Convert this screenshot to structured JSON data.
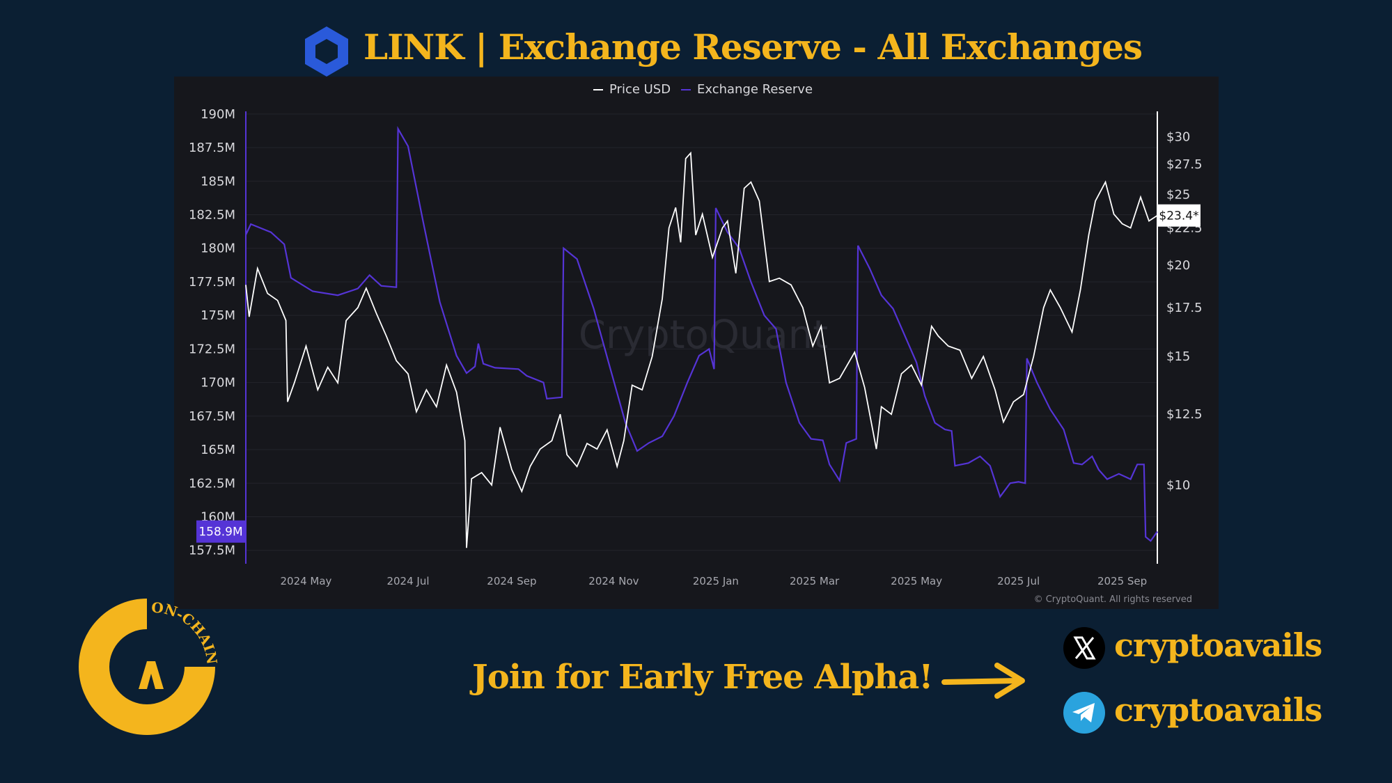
{
  "header": {
    "title": "LINK | Exchange Reserve - All Exchanges",
    "logo_icon": "chainlink-hexagon-icon",
    "logo_color": "#2a5ada"
  },
  "chart_data": {
    "type": "line",
    "legend": {
      "placement": "top-center",
      "entries": [
        "Price USD",
        "Exchange Reserve"
      ]
    },
    "x_ticks": [
      "2024 May",
      "2024 Jul",
      "2024 Sep",
      "2024 Nov",
      "2025 Jan",
      "2025 Mar",
      "2025 May",
      "2025 Jul",
      "2025 Sep"
    ],
    "x_range": [
      "2024-03-26",
      "2025-09-22"
    ],
    "y_left": {
      "ticks": [
        "190M",
        "187.5M",
        "185M",
        "182.5M",
        "180M",
        "177.5M",
        "175M",
        "172.5M",
        "170M",
        "167.5M",
        "165M",
        "162.5M",
        "160M",
        "157.5M"
      ],
      "range": [
        156.5,
        190.2
      ],
      "unit": "M"
    },
    "y_right": {
      "ticks": [
        "$30",
        "$27.5",
        "$25",
        "$22.5",
        "$20",
        "$17.5",
        "$15",
        "$12.5",
        "$10"
      ],
      "scale": "log",
      "range": [
        7.8,
        32.5
      ]
    },
    "current_badges": {
      "reserve": "158.9M",
      "price": "$23.4*"
    },
    "series": [
      {
        "name": "Exchange Reserve",
        "axis": "left",
        "color": "#5534d6",
        "points": [
          [
            "2024-03-26",
            181.0
          ],
          [
            "2024-03-29",
            181.8
          ],
          [
            "2024-04-10",
            181.2
          ],
          [
            "2024-04-18",
            180.3
          ],
          [
            "2024-04-22",
            177.8
          ],
          [
            "2024-05-05",
            176.8
          ],
          [
            "2024-05-20",
            176.5
          ],
          [
            "2024-06-01",
            177.0
          ],
          [
            "2024-06-08",
            178.0
          ],
          [
            "2024-06-15",
            177.2
          ],
          [
            "2024-06-24",
            177.1
          ],
          [
            "2024-06-25",
            188.9
          ],
          [
            "2024-07-01",
            187.6
          ],
          [
            "2024-07-10",
            182.0
          ],
          [
            "2024-07-20",
            176.0
          ],
          [
            "2024-07-30",
            172.0
          ],
          [
            "2024-08-05",
            170.7
          ],
          [
            "2024-08-10",
            171.2
          ],
          [
            "2024-08-12",
            172.9
          ],
          [
            "2024-08-15",
            171.4
          ],
          [
            "2024-08-22",
            171.1
          ],
          [
            "2024-09-05",
            171.0
          ],
          [
            "2024-09-10",
            170.5
          ],
          [
            "2024-09-20",
            170.0
          ],
          [
            "2024-09-22",
            168.8
          ],
          [
            "2024-10-01",
            168.9
          ],
          [
            "2024-10-02",
            180.0
          ],
          [
            "2024-10-10",
            179.2
          ],
          [
            "2024-10-20",
            175.5
          ],
          [
            "2024-10-30",
            171.0
          ],
          [
            "2024-11-08",
            167.0
          ],
          [
            "2024-11-15",
            164.9
          ],
          [
            "2024-11-22",
            165.5
          ],
          [
            "2024-11-30",
            166.0
          ],
          [
            "2024-12-07",
            167.5
          ],
          [
            "2024-12-15",
            170.0
          ],
          [
            "2024-12-22",
            172.0
          ],
          [
            "2024-12-28",
            172.5
          ],
          [
            "2024-12-31",
            171.0
          ],
          [
            "2025-01-01",
            183.0
          ],
          [
            "2025-01-08",
            181.2
          ],
          [
            "2025-01-15",
            180.0
          ],
          [
            "2025-01-22",
            177.5
          ],
          [
            "2025-01-30",
            175.0
          ],
          [
            "2025-02-06",
            174.0
          ],
          [
            "2025-02-12",
            170.0
          ],
          [
            "2025-02-20",
            167.0
          ],
          [
            "2025-02-27",
            165.8
          ],
          [
            "2025-03-06",
            165.7
          ],
          [
            "2025-03-10",
            163.9
          ],
          [
            "2025-03-16",
            162.7
          ],
          [
            "2025-03-20",
            165.5
          ],
          [
            "2025-03-26",
            165.8
          ],
          [
            "2025-03-27",
            180.2
          ],
          [
            "2025-04-03",
            178.5
          ],
          [
            "2025-04-10",
            176.5
          ],
          [
            "2025-04-17",
            175.5
          ],
          [
            "2025-04-24",
            173.5
          ],
          [
            "2025-05-01",
            171.5
          ],
          [
            "2025-05-06",
            169.0
          ],
          [
            "2025-05-12",
            167.0
          ],
          [
            "2025-05-18",
            166.5
          ],
          [
            "2025-05-22",
            166.4
          ],
          [
            "2025-05-24",
            163.8
          ],
          [
            "2025-06-01",
            164.0
          ],
          [
            "2025-06-08",
            164.5
          ],
          [
            "2025-06-14",
            163.8
          ],
          [
            "2025-06-20",
            161.5
          ],
          [
            "2025-06-26",
            162.5
          ],
          [
            "2025-07-01",
            162.6
          ],
          [
            "2025-07-05",
            162.5
          ],
          [
            "2025-07-06",
            171.8
          ],
          [
            "2025-07-12",
            170.0
          ],
          [
            "2025-07-20",
            168.0
          ],
          [
            "2025-07-28",
            166.5
          ],
          [
            "2025-08-03",
            164.0
          ],
          [
            "2025-08-08",
            163.9
          ],
          [
            "2025-08-14",
            164.5
          ],
          [
            "2025-08-18",
            163.5
          ],
          [
            "2025-08-23",
            162.8
          ],
          [
            "2025-08-30",
            163.2
          ],
          [
            "2025-09-06",
            162.8
          ],
          [
            "2025-09-10",
            163.9
          ],
          [
            "2025-09-14",
            163.9
          ],
          [
            "2025-09-15",
            158.5
          ],
          [
            "2025-09-18",
            158.2
          ],
          [
            "2025-09-22",
            158.9
          ]
        ]
      },
      {
        "name": "Price USD",
        "axis": "right",
        "color": "#ffffff",
        "points": [
          [
            "2024-03-26",
            18.8
          ],
          [
            "2024-03-28",
            17.0
          ],
          [
            "2024-04-02",
            19.8
          ],
          [
            "2024-04-08",
            18.3
          ],
          [
            "2024-04-14",
            17.9
          ],
          [
            "2024-04-19",
            16.8
          ],
          [
            "2024-04-20",
            13.0
          ],
          [
            "2024-04-24",
            13.8
          ],
          [
            "2024-05-01",
            15.5
          ],
          [
            "2024-05-08",
            13.5
          ],
          [
            "2024-05-14",
            14.5
          ],
          [
            "2024-05-20",
            13.8
          ],
          [
            "2024-05-25",
            16.8
          ],
          [
            "2024-06-01",
            17.5
          ],
          [
            "2024-06-06",
            18.6
          ],
          [
            "2024-06-12",
            17.2
          ],
          [
            "2024-06-18",
            16.0
          ],
          [
            "2024-06-24",
            14.8
          ],
          [
            "2024-07-01",
            14.2
          ],
          [
            "2024-07-06",
            12.6
          ],
          [
            "2024-07-12",
            13.5
          ],
          [
            "2024-07-18",
            12.8
          ],
          [
            "2024-07-24",
            14.6
          ],
          [
            "2024-07-30",
            13.4
          ],
          [
            "2024-08-04",
            11.5
          ],
          [
            "2024-08-05",
            8.2
          ],
          [
            "2024-08-08",
            10.2
          ],
          [
            "2024-08-14",
            10.4
          ],
          [
            "2024-08-20",
            10.0
          ],
          [
            "2024-08-25",
            12.0
          ],
          [
            "2024-09-01",
            10.5
          ],
          [
            "2024-09-07",
            9.8
          ],
          [
            "2024-09-12",
            10.6
          ],
          [
            "2024-09-18",
            11.2
          ],
          [
            "2024-09-25",
            11.5
          ],
          [
            "2024-09-30",
            12.5
          ],
          [
            "2024-10-04",
            11.0
          ],
          [
            "2024-10-10",
            10.6
          ],
          [
            "2024-10-16",
            11.4
          ],
          [
            "2024-10-22",
            11.2
          ],
          [
            "2024-10-28",
            11.9
          ],
          [
            "2024-11-03",
            10.6
          ],
          [
            "2024-11-07",
            11.5
          ],
          [
            "2024-11-12",
            13.7
          ],
          [
            "2024-11-18",
            13.5
          ],
          [
            "2024-11-24",
            15.0
          ],
          [
            "2024-11-30",
            18.0
          ],
          [
            "2024-12-04",
            22.5
          ],
          [
            "2024-12-08",
            24.0
          ],
          [
            "2024-12-11",
            21.5
          ],
          [
            "2024-12-14",
            28.0
          ],
          [
            "2024-12-17",
            28.5
          ],
          [
            "2024-12-20",
            22.0
          ],
          [
            "2024-12-24",
            23.5
          ],
          [
            "2024-12-30",
            20.5
          ],
          [
            "2025-01-05",
            22.5
          ],
          [
            "2025-01-08",
            23.0
          ],
          [
            "2025-01-13",
            19.5
          ],
          [
            "2025-01-18",
            25.5
          ],
          [
            "2025-01-22",
            26.0
          ],
          [
            "2025-01-27",
            24.5
          ],
          [
            "2025-02-02",
            19.0
          ],
          [
            "2025-02-08",
            19.2
          ],
          [
            "2025-02-15",
            18.8
          ],
          [
            "2025-02-22",
            17.5
          ],
          [
            "2025-02-28",
            15.5
          ],
          [
            "2025-03-05",
            16.5
          ],
          [
            "2025-03-10",
            13.8
          ],
          [
            "2025-03-16",
            14.0
          ],
          [
            "2025-03-25",
            15.2
          ],
          [
            "2025-03-31",
            13.6
          ],
          [
            "2025-04-07",
            11.2
          ],
          [
            "2025-04-10",
            12.8
          ],
          [
            "2025-04-16",
            12.5
          ],
          [
            "2025-04-22",
            14.2
          ],
          [
            "2025-04-28",
            14.6
          ],
          [
            "2025-05-04",
            13.7
          ],
          [
            "2025-05-10",
            16.5
          ],
          [
            "2025-05-14",
            16.0
          ],
          [
            "2025-05-20",
            15.5
          ],
          [
            "2025-05-27",
            15.3
          ],
          [
            "2025-06-03",
            14.0
          ],
          [
            "2025-06-10",
            15.0
          ],
          [
            "2025-06-17",
            13.5
          ],
          [
            "2025-06-22",
            12.2
          ],
          [
            "2025-06-28",
            13.0
          ],
          [
            "2025-07-04",
            13.3
          ],
          [
            "2025-07-10",
            15.0
          ],
          [
            "2025-07-16",
            17.5
          ],
          [
            "2025-07-20",
            18.5
          ],
          [
            "2025-07-26",
            17.5
          ],
          [
            "2025-08-02",
            16.2
          ],
          [
            "2025-08-07",
            18.5
          ],
          [
            "2025-08-12",
            22.0
          ],
          [
            "2025-08-16",
            24.5
          ],
          [
            "2025-08-22",
            26.0
          ],
          [
            "2025-08-27",
            23.5
          ],
          [
            "2025-09-01",
            22.8
          ],
          [
            "2025-09-06",
            22.5
          ],
          [
            "2025-09-12",
            24.8
          ],
          [
            "2025-09-17",
            23.0
          ],
          [
            "2025-09-22",
            23.4
          ]
        ]
      }
    ]
  },
  "watermark": "CryptoQuant",
  "copyright": "© CryptoQuant. All rights reserved",
  "brand": {
    "badge_text": "ON-CHAIN",
    "accent_color": "#f4b51d"
  },
  "cta": {
    "text": "Join for Early Free Alpha!",
    "arrow_icon": "arrow-right-icon"
  },
  "socials": [
    {
      "platform_icon": "x-icon",
      "handle": "cryptoavails"
    },
    {
      "platform_icon": "telegram-icon",
      "handle": "cryptoavails"
    }
  ]
}
